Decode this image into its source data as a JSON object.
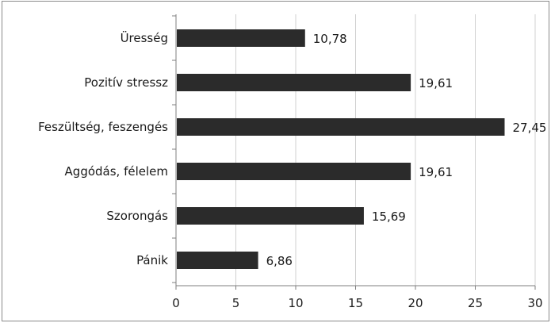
{
  "chart_data": {
    "type": "bar",
    "orientation": "horizontal",
    "categories": [
      "Üresség",
      "Pozitív stressz",
      "Feszültség, feszengés",
      "Aggódás, félelem",
      "Szorongás",
      "Pánik"
    ],
    "values": [
      10.78,
      19.61,
      27.45,
      19.61,
      15.69,
      6.86
    ],
    "data_labels": [
      "10,78",
      "19,61",
      "27,45",
      "19,61",
      "15,69",
      "6,86"
    ],
    "xlim": [
      0,
      30
    ],
    "x_ticks": [
      0,
      5,
      10,
      15,
      20,
      25,
      30
    ],
    "x_tick_labels": [
      "0",
      "5",
      "10",
      "15",
      "20",
      "25",
      "30"
    ],
    "grid": true,
    "legend": "none",
    "bar_color": "#2b2b2b",
    "grid_color": "#d0d0d0",
    "axis_color": "#7f7f7f"
  }
}
